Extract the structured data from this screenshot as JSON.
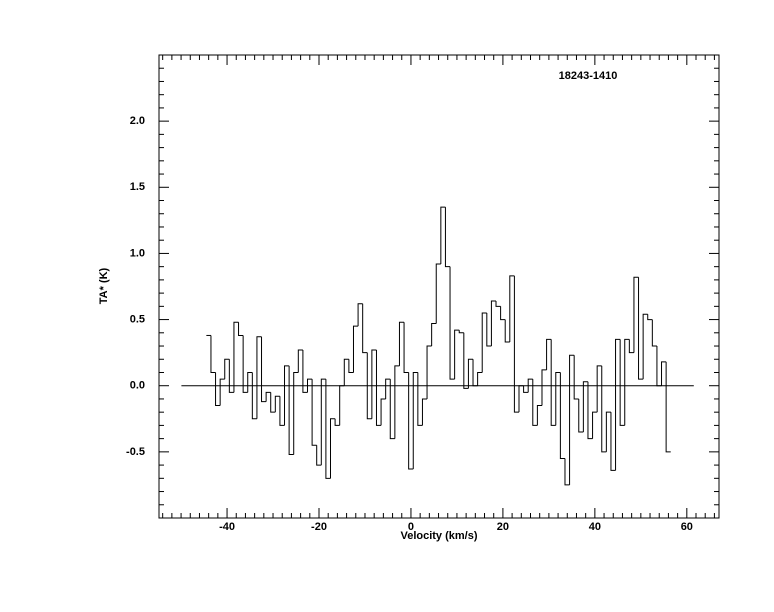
{
  "chart_data": {
    "type": "step",
    "title": "18243-1410",
    "x_label": "Velocity (km/s)",
    "y_label": "TA* (K)",
    "xlim": [
      -54.8,
      67
    ],
    "ylim": [
      -1.0,
      2.5
    ],
    "xticks": [
      -40,
      -20,
      0,
      20,
      40,
      60
    ],
    "yticks": [
      -0.5,
      {
        "value": 0.0,
        "label": "0.0"
      },
      0.5,
      {
        "value": 1.0,
        "label": "1.0"
      },
      1.5,
      {
        "value": 2.0,
        "label": "2.0"
      }
    ],
    "minor_ticks": true,
    "zero_line": true,
    "color": "#000000",
    "x": [
      -44,
      -43,
      -42,
      -41,
      -40,
      -39,
      -38,
      -37,
      -36,
      -35,
      -34,
      -33,
      -32,
      -31,
      -30,
      -29,
      -28,
      -27,
      -26,
      -25,
      -24,
      -23,
      -22,
      -21,
      -20,
      -19,
      -18,
      -17,
      -16,
      -15,
      -14,
      -13,
      -12,
      -11,
      -10,
      -9,
      -8,
      -7,
      -6,
      -5,
      -4,
      -3,
      -2,
      -1,
      0,
      1,
      2,
      3,
      4,
      5,
      6,
      7,
      8,
      9,
      10,
      11,
      12,
      13,
      14,
      15,
      16,
      17,
      18,
      19,
      20,
      21,
      22,
      23,
      24,
      25,
      26,
      27,
      28,
      29,
      30,
      31,
      32,
      33,
      34,
      35,
      36,
      37,
      38,
      39,
      40,
      41,
      42,
      43,
      44,
      45,
      46,
      47,
      48,
      49,
      50,
      51,
      52,
      53,
      54,
      55,
      56
    ],
    "values": [
      0.38,
      0.1,
      -0.15,
      0.05,
      0.2,
      -0.05,
      0.48,
      0.38,
      -0.05,
      0.1,
      -0.25,
      0.37,
      -0.12,
      -0.05,
      -0.2,
      -0.08,
      -0.3,
      0.15,
      -0.52,
      0.1,
      0.27,
      -0.05,
      0.05,
      -0.45,
      -0.6,
      0.05,
      -0.7,
      -0.25,
      -0.3,
      0.0,
      0.2,
      0.1,
      0.45,
      0.62,
      0.25,
      -0.25,
      0.27,
      -0.3,
      -0.1,
      0.05,
      -0.4,
      0.15,
      0.48,
      0.1,
      -0.63,
      0.1,
      -0.3,
      -0.1,
      0.3,
      0.47,
      0.92,
      1.35,
      0.9,
      0.05,
      0.42,
      0.4,
      -0.02,
      0.2,
      0.0,
      0.1,
      0.55,
      0.3,
      0.64,
      0.6,
      0.5,
      0.33,
      0.83,
      -0.2,
      0.0,
      -0.05,
      0.05,
      -0.3,
      -0.15,
      0.12,
      0.35,
      -0.3,
      0.1,
      -0.55,
      -0.75,
      0.23,
      -0.1,
      -0.35,
      0.03,
      -0.4,
      -0.2,
      0.15,
      -0.5,
      -0.2,
      -0.64,
      0.35,
      -0.3,
      0.35,
      0.25,
      0.82,
      0.05,
      0.54,
      0.5,
      0.3,
      0.0,
      0.18,
      -0.5
    ]
  }
}
